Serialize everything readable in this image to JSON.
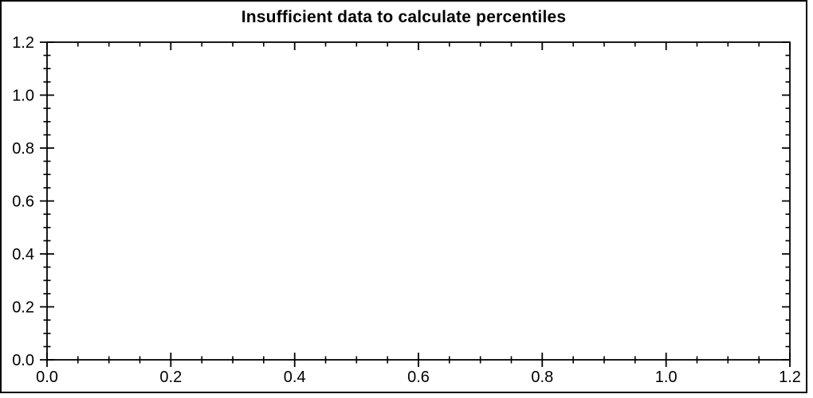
{
  "colors": {
    "background": "#ffffff",
    "frame": "#000000",
    "axis": "#000000",
    "text": "#000000"
  },
  "chart_data": {
    "type": "scatter",
    "title": "Insufficient data to calculate percentiles",
    "xlabel": "",
    "ylabel": "",
    "xlim": [
      0.0,
      1.2
    ],
    "ylim": [
      0.0,
      1.2
    ],
    "x_major_ticks": [
      0.0,
      0.2,
      0.4,
      0.6,
      0.8,
      1.0,
      1.2
    ],
    "y_major_ticks": [
      0.0,
      0.2,
      0.4,
      0.6,
      0.8,
      1.0,
      1.2
    ],
    "x_tick_labels": [
      "0.0",
      "0.2",
      "0.4",
      "0.6",
      "0.8",
      "1.0",
      "1.2"
    ],
    "y_tick_labels": [
      "0.0",
      "0.2",
      "0.4",
      "0.6",
      "0.8",
      "1.0",
      "1.2"
    ],
    "minor_tick_step": 0.05,
    "grid": false,
    "legend": false,
    "series": [],
    "annotations": []
  }
}
